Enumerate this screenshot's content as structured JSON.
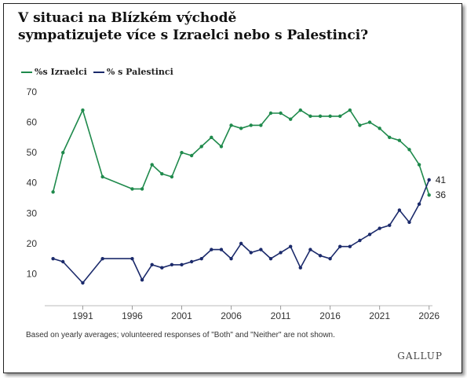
{
  "title_line1": "V situaci na Blízkém východě",
  "title_line2": "sympatizujete více s Izraelci nebo s Palestinci?",
  "legend": [
    {
      "label": "%s Izraelci",
      "color": "#1f8a4c"
    },
    {
      "label": "% s Palestinci",
      "color": "#1b2a6b"
    }
  ],
  "note": "Based on yearly averages; volunteered responses of \"Both\" and \"Neither\" are not shown.",
  "brand": "GALLUP",
  "chart_data": {
    "type": "line",
    "title": "V situaci na Blízkém východě sympatizujete více s Izraelci nebo s Palestinci?",
    "xlabel": "",
    "ylabel": "",
    "xlim": [
      1987,
      2026.5
    ],
    "ylim": [
      0,
      70
    ],
    "yticks": [
      10,
      20,
      30,
      40,
      50,
      60,
      70
    ],
    "xticks": [
      1991,
      1996,
      2001,
      2006,
      2011,
      2016,
      2021,
      2026
    ],
    "grid": false,
    "legend_position": "top-left",
    "series": [
      {
        "name": "%s Izraelci",
        "color": "#1f8a4c",
        "end_label": "36",
        "points": [
          [
            1988,
            37
          ],
          [
            1989,
            50
          ],
          [
            1991,
            64
          ],
          [
            1993,
            42
          ],
          [
            1996,
            38
          ],
          [
            1997,
            38
          ],
          [
            1998,
            46
          ],
          [
            1999,
            43
          ],
          [
            2000,
            42
          ],
          [
            2001,
            50
          ],
          [
            2002,
            49
          ],
          [
            2003,
            52
          ],
          [
            2004,
            55
          ],
          [
            2005,
            52
          ],
          [
            2006,
            59
          ],
          [
            2007,
            58
          ],
          [
            2008,
            59
          ],
          [
            2009,
            59
          ],
          [
            2010,
            63
          ],
          [
            2011,
            63
          ],
          [
            2012,
            61
          ],
          [
            2013,
            64
          ],
          [
            2014,
            62
          ],
          [
            2015,
            62
          ],
          [
            2016,
            62
          ],
          [
            2017,
            62
          ],
          [
            2018,
            64
          ],
          [
            2019,
            59
          ],
          [
            2020,
            60
          ],
          [
            2021,
            58
          ],
          [
            2022,
            55
          ],
          [
            2023,
            54
          ],
          [
            2024,
            51
          ],
          [
            2025,
            46
          ],
          [
            2026,
            36
          ]
        ]
      },
      {
        "name": "% s Palestinci",
        "color": "#1b2a6b",
        "end_label": "41",
        "points": [
          [
            1988,
            15
          ],
          [
            1989,
            14
          ],
          [
            1991,
            7
          ],
          [
            1993,
            15
          ],
          [
            1996,
            15
          ],
          [
            1997,
            8
          ],
          [
            1998,
            13
          ],
          [
            1999,
            12
          ],
          [
            2000,
            13
          ],
          [
            2001,
            13
          ],
          [
            2002,
            14
          ],
          [
            2003,
            15
          ],
          [
            2004,
            18
          ],
          [
            2005,
            18
          ],
          [
            2006,
            15
          ],
          [
            2007,
            20
          ],
          [
            2008,
            17
          ],
          [
            2009,
            18
          ],
          [
            2010,
            15
          ],
          [
            2011,
            17
          ],
          [
            2012,
            19
          ],
          [
            2013,
            12
          ],
          [
            2014,
            18
          ],
          [
            2015,
            16
          ],
          [
            2016,
            15
          ],
          [
            2017,
            19
          ],
          [
            2018,
            19
          ],
          [
            2019,
            21
          ],
          [
            2020,
            23
          ],
          [
            2021,
            25
          ],
          [
            2022,
            26
          ],
          [
            2023,
            31
          ],
          [
            2024,
            27
          ],
          [
            2025,
            33
          ],
          [
            2026,
            41
          ]
        ]
      }
    ]
  }
}
